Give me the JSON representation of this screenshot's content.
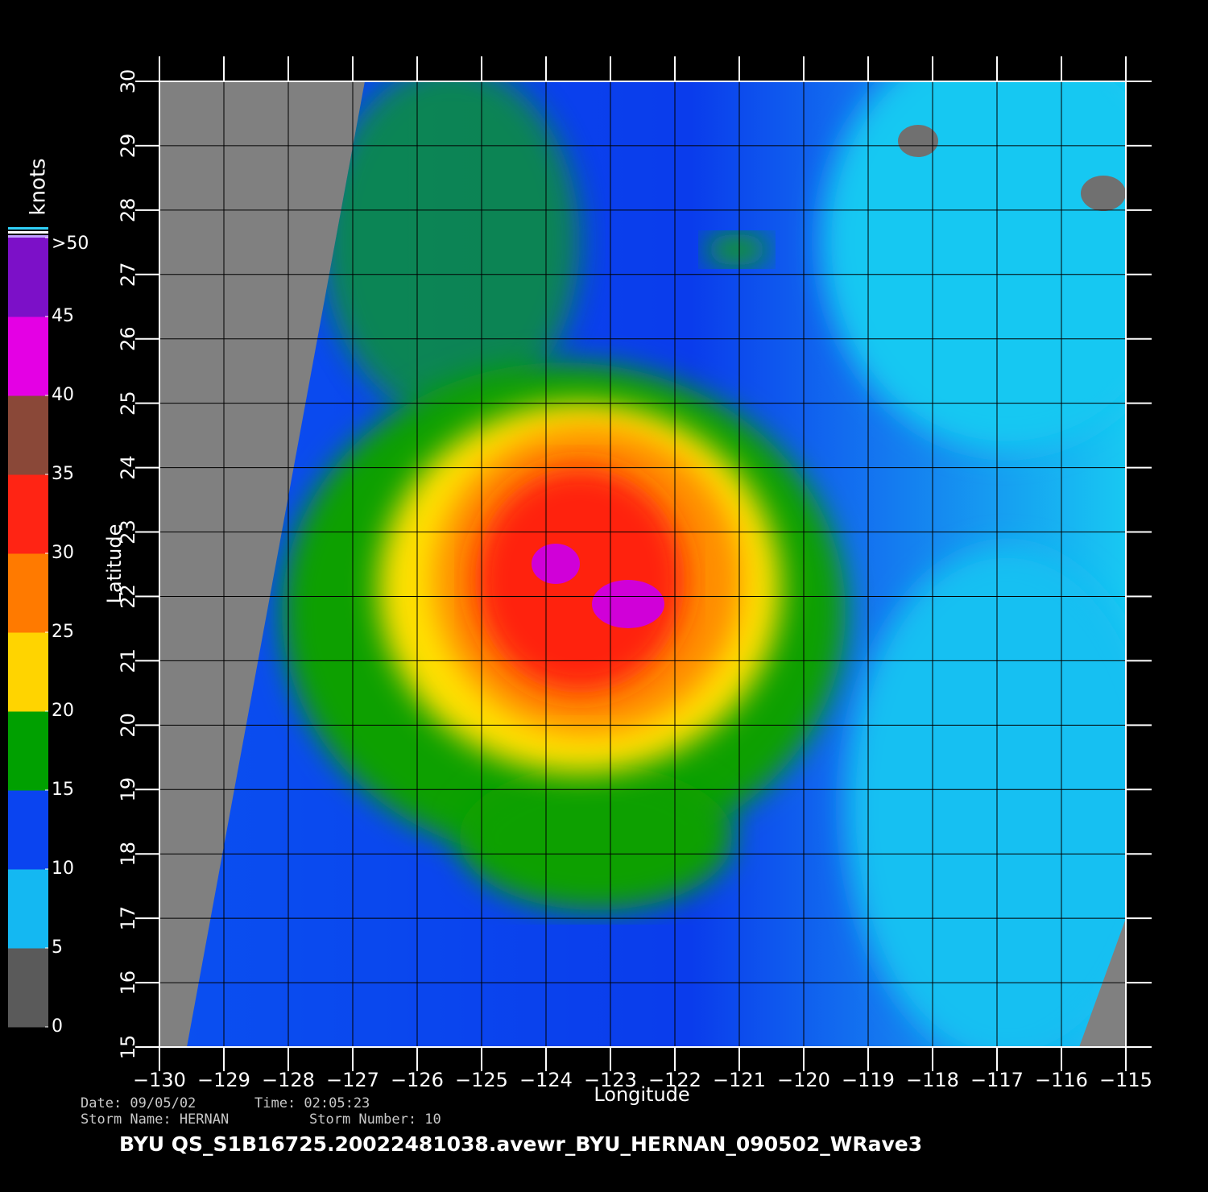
{
  "map": {
    "colorbar": {
      "title": "knots",
      "lim": [
        0,
        50
      ],
      "ticks": [
        0,
        5,
        10,
        15,
        20,
        25,
        30,
        35,
        40,
        45,
        {
          "value": 50,
          "label": ">50"
        }
      ],
      "colors": [
        "#5a5a5a",
        "#14b8f2",
        "#0a44f0",
        "#00a000",
        "#ffd400",
        "#ff7a00",
        "#ff2414",
        "#8a4838",
        "#e400e4",
        "#7c10c8"
      ]
    },
    "y_axis": {
      "label": "Latitude",
      "lim": [
        15,
        30
      ],
      "ticks": [
        15,
        16,
        17,
        18,
        19,
        20,
        21,
        22,
        23,
        24,
        25,
        26,
        27,
        28,
        29,
        30
      ]
    },
    "x_axis": {
      "label": "Longitude",
      "lim": [
        -130,
        -115
      ],
      "ticks": [
        {
          "value": -130,
          "label": "−130"
        },
        {
          "value": -129,
          "label": "−129"
        },
        {
          "value": -128,
          "label": "−128"
        },
        {
          "value": -127,
          "label": "−127"
        },
        {
          "value": -126,
          "label": "−126"
        },
        {
          "value": -125,
          "label": "−125"
        },
        {
          "value": -124,
          "label": "−124"
        },
        {
          "value": -123,
          "label": "−123"
        },
        {
          "value": -122,
          "label": "−122"
        },
        {
          "value": -121,
          "label": "−121"
        },
        {
          "value": -120,
          "label": "−120"
        },
        {
          "value": -119,
          "label": "−119"
        },
        {
          "value": -118,
          "label": "−118"
        },
        {
          "value": -117,
          "label": "−117"
        },
        {
          "value": -116,
          "label": "−116"
        },
        {
          "value": -115,
          "label": "−115"
        }
      ]
    },
    "info": [
      "Date: 09/05/02",
      "Time: 02:05:23",
      "Storm Name: HERNAN",
      "Storm Number: 10"
    ],
    "title": "BYU  QS_S1B16725.20022481038.avewr_BYU_HERNAN_090502_WRave3"
  }
}
